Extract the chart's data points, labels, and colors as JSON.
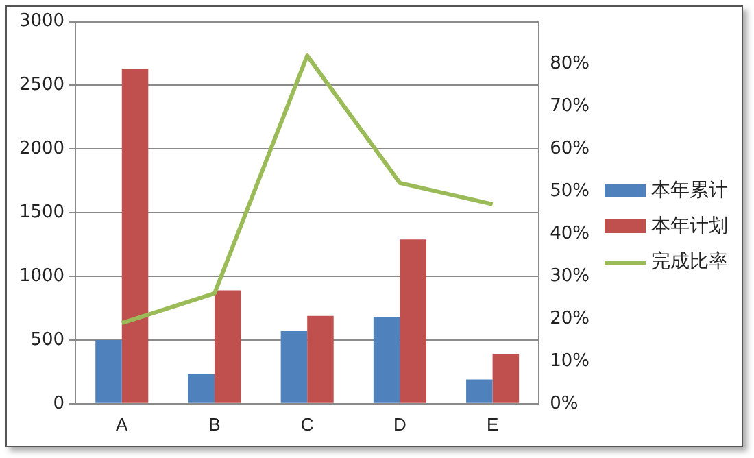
{
  "chart_data": {
    "type": "bar",
    "categories": [
      "A",
      "B",
      "C",
      "D",
      "E"
    ],
    "series": [
      {
        "name": "本年累计",
        "color": "#4f81bd",
        "values": [
          500,
          230,
          570,
          680,
          190
        ]
      },
      {
        "name": "本年计划",
        "color": "#c0504d",
        "values": [
          2630,
          890,
          690,
          1290,
          390
        ]
      },
      {
        "name": "完成比率",
        "type": "line",
        "axis": "y2",
        "color": "#9bbb59",
        "values": [
          19,
          26,
          82,
          52,
          47
        ]
      }
    ],
    "ylim": [
      0,
      3000
    ],
    "yticks": [
      0,
      500,
      1000,
      1500,
      2000,
      2500,
      3000
    ],
    "y2lim": [
      0,
      90
    ],
    "y2ticks": [
      {
        "value": 0,
        "label": "0%"
      },
      {
        "value": 10,
        "label": "10%"
      },
      {
        "value": 20,
        "label": "20%"
      },
      {
        "value": 30,
        "label": "30%"
      },
      {
        "value": 40,
        "label": "40%"
      },
      {
        "value": 50,
        "label": "50%"
      },
      {
        "value": 60,
        "label": "60%"
      },
      {
        "value": 70,
        "label": "70%"
      },
      {
        "value": 80,
        "label": "80%"
      }
    ],
    "grid": "y",
    "legend": "right",
    "marker": "none"
  }
}
